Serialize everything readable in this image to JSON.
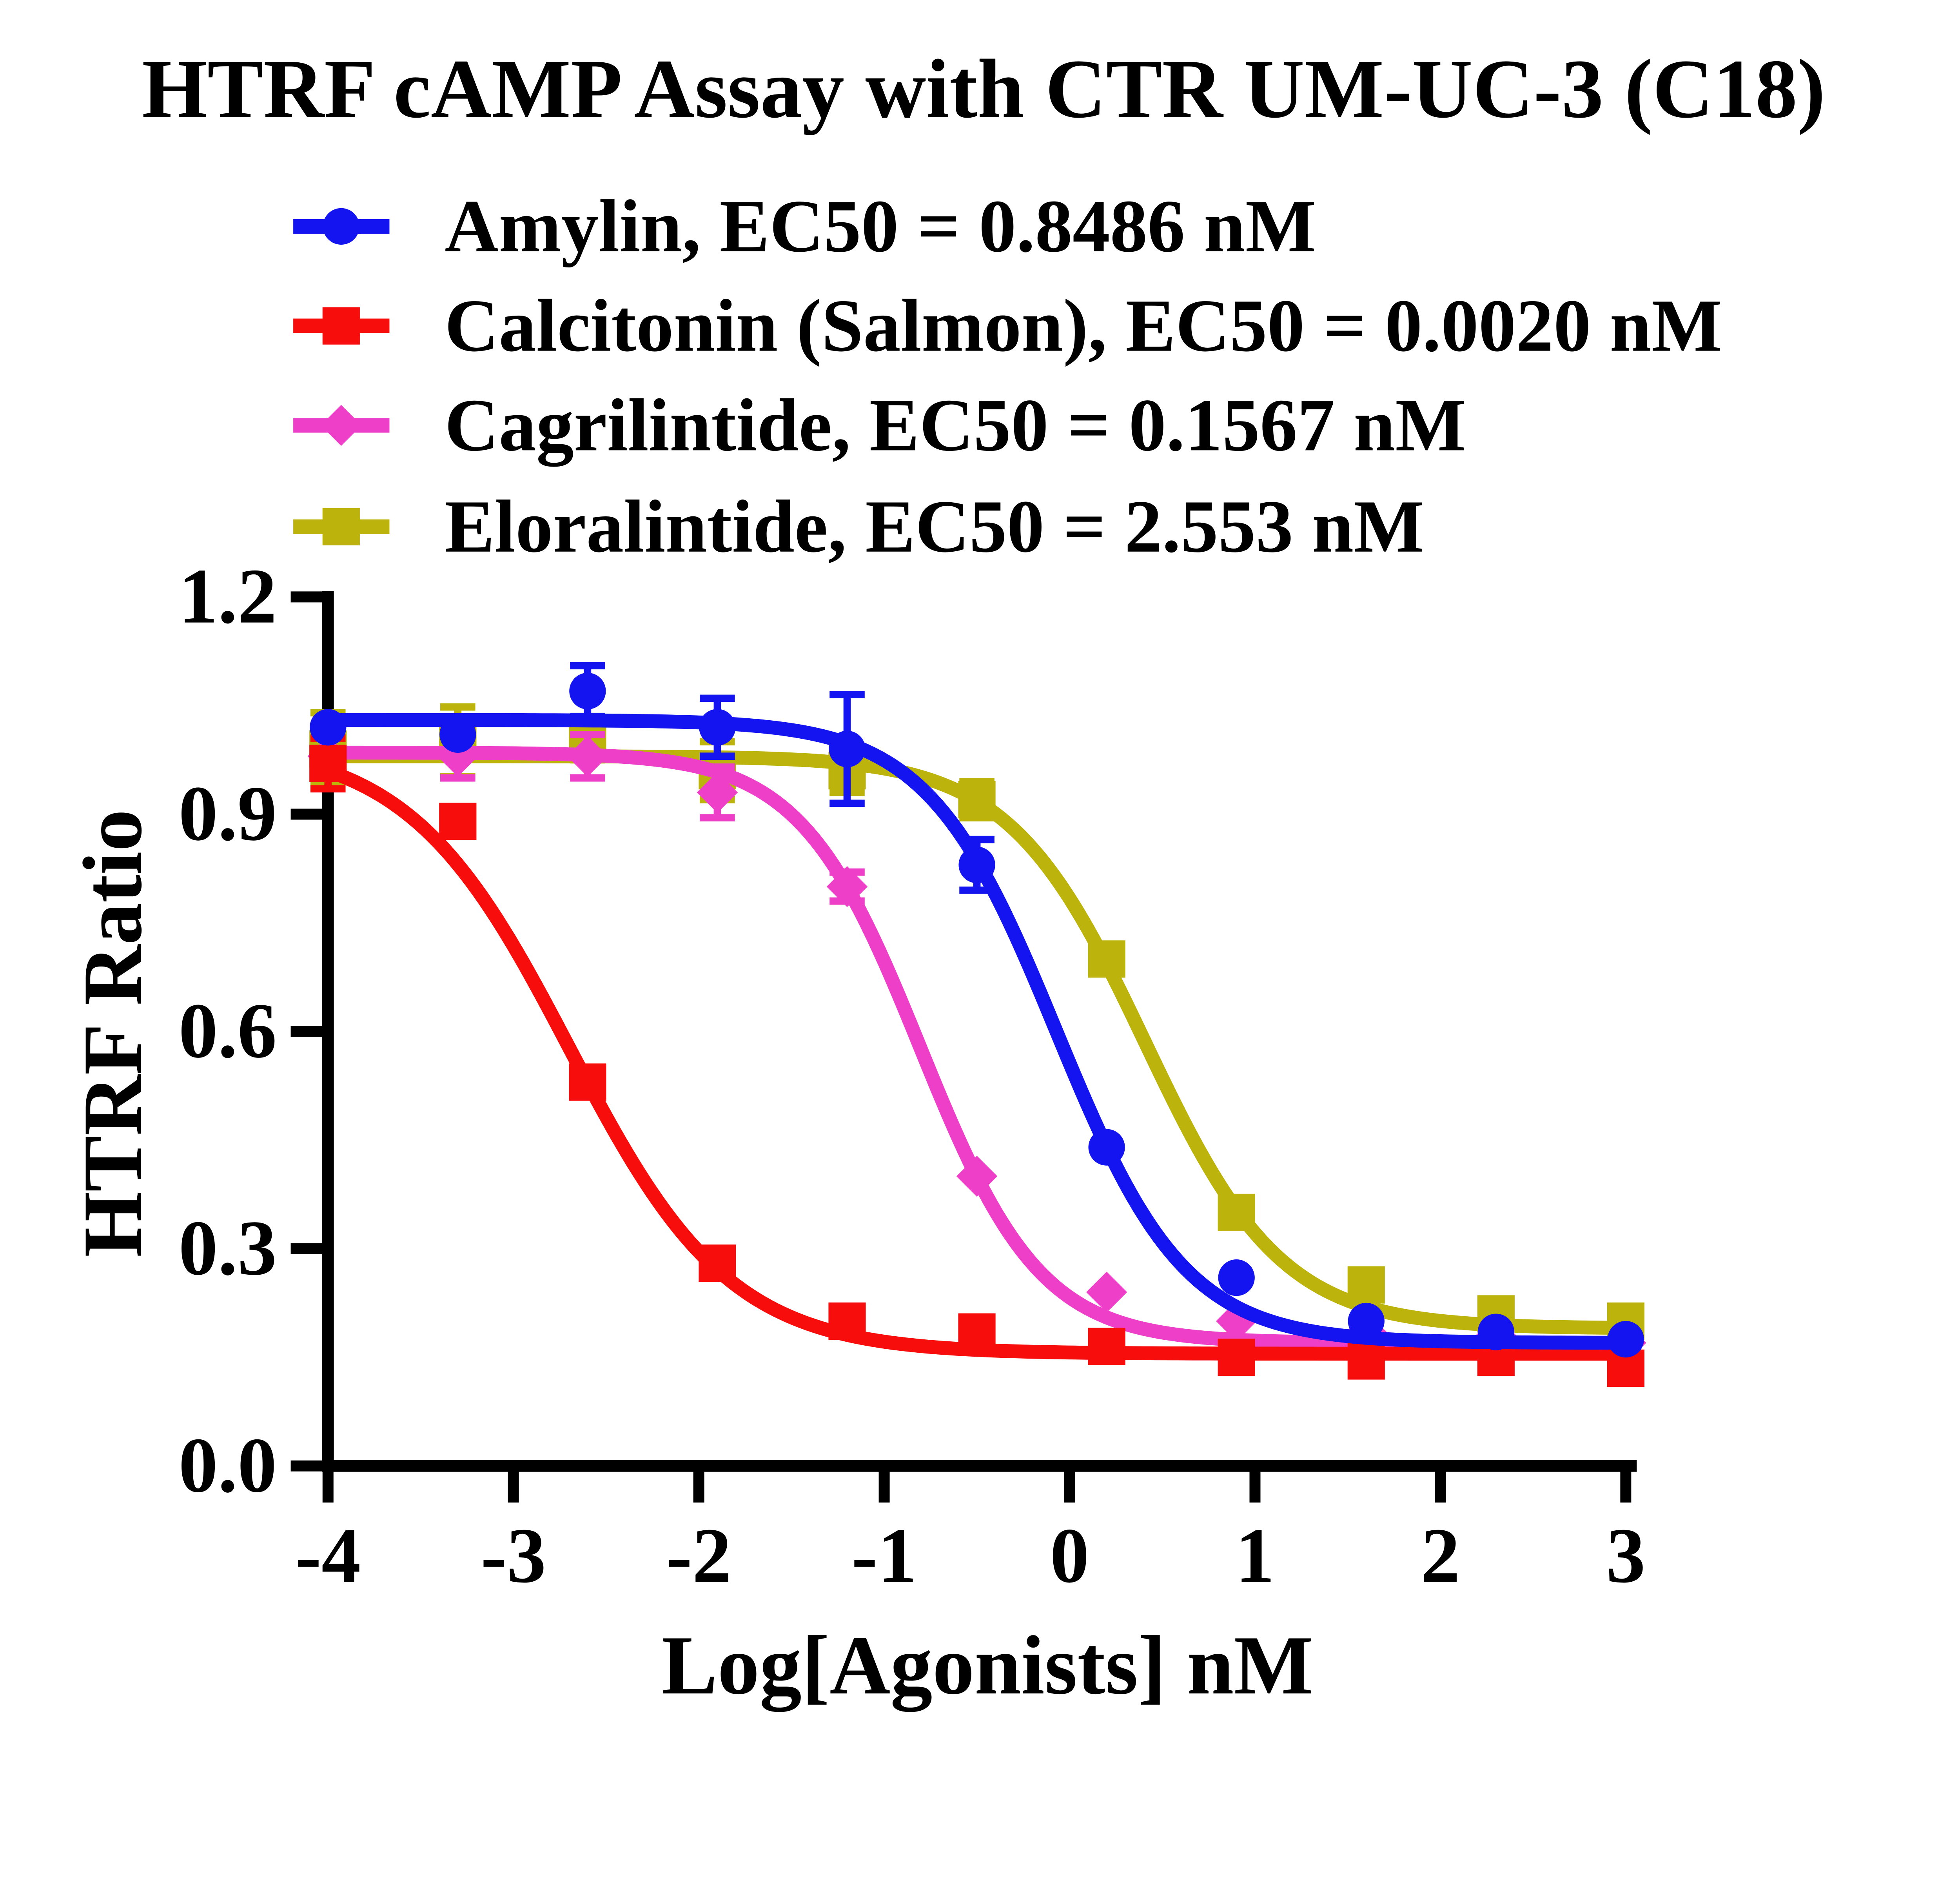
{
  "title": "HTRF cAMP Assay with CTR UM-UC-3 (C18)",
  "legend": {
    "items": [
      {
        "label": "Amylin, EC50 = 0.8486 nM",
        "color": "#1414F0",
        "marker": "circle"
      },
      {
        "label": "Calcitonin (Salmon), EC50 = 0.0020 nM",
        "color": "#F80D0D",
        "marker": "square"
      },
      {
        "label": "Cagrilintide, EC50 = 0.1567 nM",
        "color": "#EE3FC8",
        "marker": "diamond"
      },
      {
        "label": "Eloralintide, EC50 = 2.553 nM",
        "color": "#BCB40C",
        "marker": "square"
      }
    ]
  },
  "axes": {
    "x": {
      "label": "Log[Agonists] nM",
      "ticks": [
        "-4",
        "-3",
        "-2",
        "-1",
        "0",
        "1",
        "2",
        "3"
      ],
      "tick_values": [
        -4,
        -3,
        -2,
        -1,
        0,
        1,
        2,
        3
      ]
    },
    "y": {
      "label": "HTRF Ratio",
      "ticks": [
        "0.0",
        "0.3",
        "0.6",
        "0.9",
        "1.2"
      ],
      "tick_values": [
        0.0,
        0.3,
        0.6,
        0.9,
        1.2
      ]
    }
  },
  "chart_data": {
    "type": "scatter",
    "title": "HTRF cAMP Assay with CTR UM-UC-3 (C18)",
    "xlabel": "Log[Agonists] nM",
    "ylabel": "HTRF Ratio",
    "xlim": [
      -4,
      3
    ],
    "ylim": [
      0,
      1.2
    ],
    "grid": false,
    "legend_position": "top-left",
    "x": [
      -4,
      -3.3,
      -2.6,
      -1.9,
      -1.2,
      -0.5,
      0.2,
      0.9,
      1.6,
      2.3,
      3
    ],
    "series": [
      {
        "name": "Amylin",
        "ec50_label": "EC50 = 0.8486 nM",
        "ec50_nM": 0.8486,
        "color": "#1414F0",
        "marker": "circle",
        "values": [
          1.02,
          1.01,
          1.07,
          1.02,
          0.99,
          0.83,
          0.44,
          0.26,
          0.2,
          0.185,
          0.175
        ],
        "errors": [
          0,
          0,
          0.035,
          0.04,
          0.075,
          0.035,
          0,
          0,
          0,
          0,
          0
        ],
        "fit": {
          "top": 1.03,
          "bottom": 0.17,
          "logec50": -0.071,
          "hill": 1.25
        }
      },
      {
        "name": "Calcitonin (Salmon)",
        "ec50_label": "EC50 = 0.0020 nM",
        "ec50_nM": 0.002,
        "color": "#F80D0D",
        "marker": "square",
        "values": [
          0.97,
          0.89,
          0.53,
          0.28,
          0.2,
          0.185,
          0.165,
          0.15,
          0.145,
          0.15,
          0.135
        ],
        "errors": [
          0.035,
          0,
          0,
          0,
          0,
          0,
          0,
          0,
          0,
          0,
          0
        ],
        "fit": {
          "top": 1.0,
          "bottom": 0.155,
          "logec50": -2.699,
          "hill": 1.0
        }
      },
      {
        "name": "Cagrilintide",
        "ec50_label": "EC50 = 0.1567 nM",
        "ec50_nM": 0.1567,
        "color": "#EE3FC8",
        "marker": "diamond",
        "values": [
          0.98,
          0.98,
          0.98,
          0.93,
          0.8,
          0.4,
          0.24,
          0.2,
          0.185,
          0.18,
          0.17
        ],
        "errors": [
          0,
          0.03,
          0.03,
          0.035,
          0.02,
          0,
          0,
          0,
          0,
          0,
          0
        ],
        "fit": {
          "top": 0.985,
          "bottom": 0.17,
          "logec50": -0.805,
          "hill": 1.34
        }
      },
      {
        "name": "Eloralintide",
        "ec50_label": "EC50 = 2.553 nM",
        "ec50_nM": 2.553,
        "color": "#BCB40C",
        "marker": "square",
        "values": [
          0.99,
          1.0,
          1.0,
          0.96,
          0.96,
          0.92,
          0.7,
          0.35,
          0.25,
          0.21,
          0.2
        ],
        "errors": [
          0.05,
          0.048,
          0.025,
          0.04,
          0.03,
          0.025,
          0,
          0,
          0,
          0,
          0
        ],
        "fit": {
          "top": 0.98,
          "bottom": 0.19,
          "logec50": 0.407,
          "hill": 1.18
        }
      }
    ]
  }
}
